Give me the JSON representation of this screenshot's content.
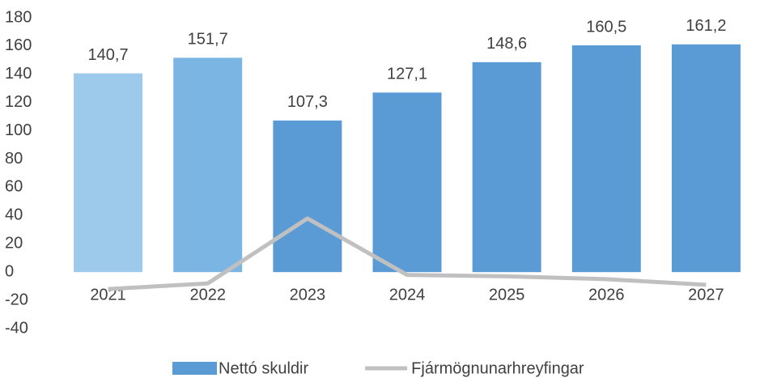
{
  "chart_data": {
    "type": "bar",
    "categories": [
      "2021",
      "2022",
      "2023",
      "2024",
      "2025",
      "2026",
      "2027"
    ],
    "series": [
      {
        "name": "Nettó skuldir",
        "type": "bar",
        "color": "#5b9bd5",
        "colors": [
          "#9dc9ea",
          "#7ab5e3",
          "#5b9bd5",
          "#5b9bd5",
          "#5b9bd5",
          "#5b9bd5",
          "#5b9bd5"
        ],
        "values": [
          140.7,
          151.7,
          107.3,
          127.1,
          148.6,
          160.5,
          161.2
        ],
        "value_labels": [
          "140,7",
          "151,7",
          "107,3",
          "127,1",
          "148,6",
          "160,5",
          "161,2"
        ]
      },
      {
        "name": "Fjármögnunarhreyfingar",
        "type": "line",
        "color": "#c0c0c0",
        "values": [
          -12,
          -8,
          38,
          -2,
          -3,
          -5,
          -9
        ]
      }
    ],
    "ylim": [
      -40,
      180
    ],
    "yticks": [
      -40,
      -20,
      0,
      20,
      40,
      60,
      80,
      100,
      120,
      140,
      160,
      180
    ]
  }
}
